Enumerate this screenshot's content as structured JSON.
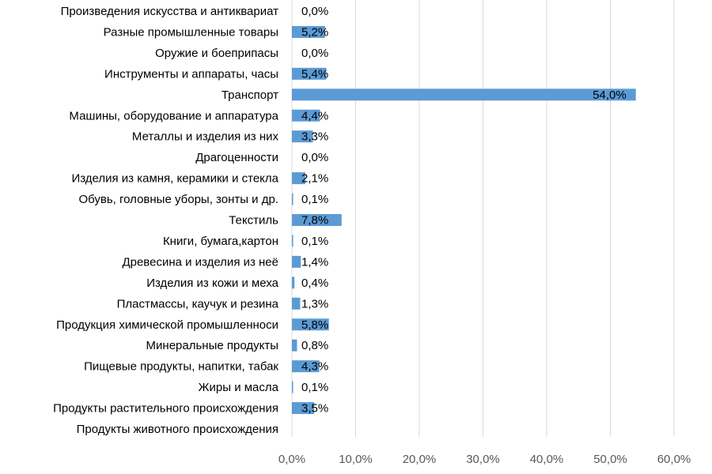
{
  "chart_data": {
    "type": "bar",
    "orientation": "horizontal",
    "categories": [
      "Произведения искусства и антиквариат",
      "Разные промышленные товары",
      "Оружие и боеприпасы",
      "Инструменты и аппараты, часы",
      "Транспорт",
      "Машины, оборудование и аппаратура",
      "Металлы и изделия из них",
      "Драгоценности",
      "Изделия из камня, керамики и стекла",
      "Обувь, головные уборы, зонты и др.",
      "Текстиль",
      "Книги, бумага,картон",
      "Древесина и изделия из неё",
      "Изделия из кожи и меха",
      "Пластмассы, каучук и резина",
      "Продукция химической промышленноси",
      "Минеральные продукты",
      "Пищевые продукты, напитки, табак",
      "Жиры и масла",
      "Продукты растительного происхождения",
      "Продукты животного происхождения"
    ],
    "values": [
      0.0,
      5.2,
      0.0,
      5.4,
      54.0,
      4.4,
      3.3,
      0.0,
      2.1,
      0.1,
      7.8,
      0.1,
      1.4,
      0.4,
      1.3,
      5.8,
      0.8,
      4.3,
      0.1,
      3.5,
      null
    ],
    "value_labels": [
      "0,0%",
      "5,2%",
      "0,0%",
      "5,4%",
      "54,0%",
      "4,4%",
      "3,3%",
      "0,0%",
      "2,1%",
      "0,1%",
      "7,8%",
      "0,1%",
      "1,4%",
      "0,4%",
      "1,3%",
      "5,8%",
      "0,8%",
      "4,3%",
      "0,1%",
      "3,5%",
      ""
    ],
    "x_ticks": [
      0,
      10,
      20,
      30,
      40,
      50,
      60
    ],
    "x_tick_labels": [
      "0,0%",
      "10,0%",
      "20,0%",
      "30,0%",
      "40,0%",
      "50,0%",
      "60,0%"
    ],
    "xlim": [
      0,
      60
    ],
    "grid": true,
    "legend": "none",
    "title": "",
    "xlabel": "",
    "ylabel": "",
    "colors": {
      "bar": "#5b9bd5",
      "grid": "#d9d9d9",
      "tick_text": "#595959"
    }
  }
}
